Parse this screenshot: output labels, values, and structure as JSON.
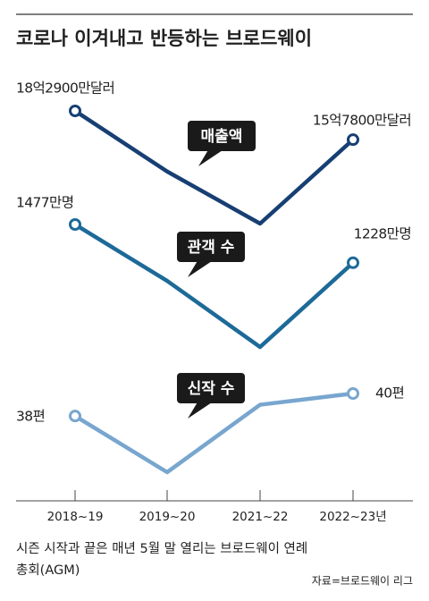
{
  "chart_data": {
    "type": "line",
    "title": "코로나 이겨내고 반등하는 브로드웨이",
    "categories": [
      "2018~19",
      "2019~20",
      "2021~22",
      "2022~23년"
    ],
    "series": [
      {
        "name": "매출액",
        "color": "#173f73",
        "values": [
          1829000000,
          1300000000,
          845000000,
          1578000000
        ],
        "value_labels": [
          "18억2900만달러",
          null,
          null,
          "15억7800만달러"
        ]
      },
      {
        "name": "관객 수",
        "color": "#1d6a98",
        "values": [
          14770000,
          11100000,
          6800000,
          12280000
        ],
        "value_labels": [
          "1477만명",
          null,
          null,
          "1228만명"
        ]
      },
      {
        "name": "신작 수",
        "color": "#78a6cf",
        "values": [
          38,
          33,
          39,
          40
        ],
        "value_labels": [
          "38편",
          null,
          null,
          "40편"
        ]
      }
    ],
    "note": "시즌 시작과 끝은 매년 5월 말 열리는 브로드웨이 연례 총회(AGM)",
    "source": "자료=브로드웨이 리그"
  }
}
